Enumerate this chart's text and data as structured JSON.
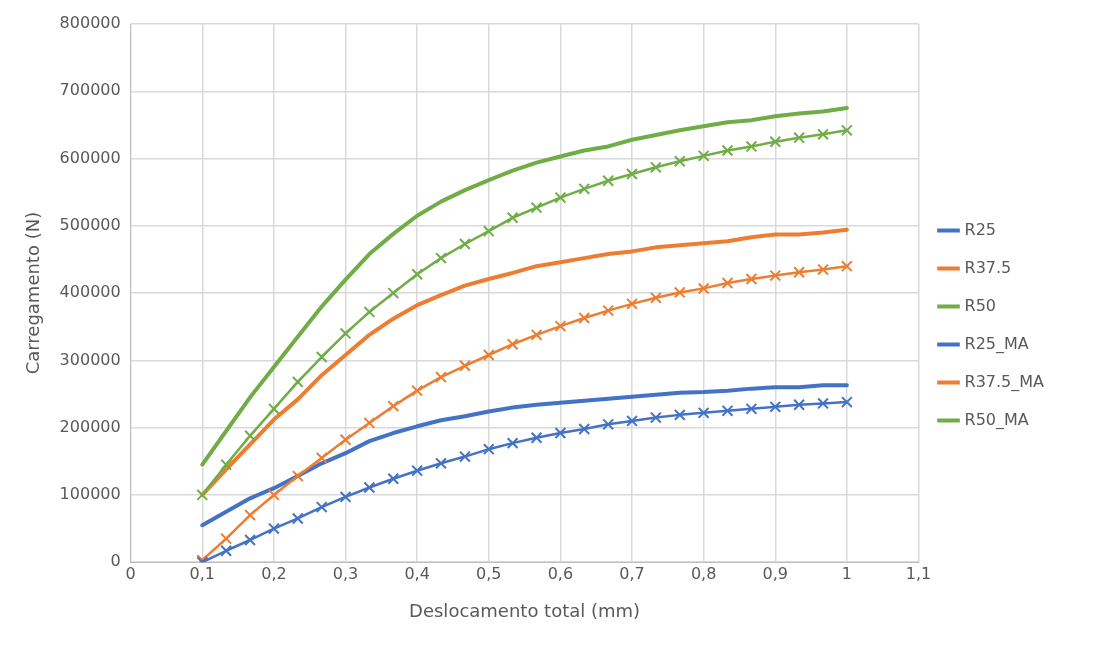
{
  "chart_data": {
    "type": "line",
    "xlabel": "Deslocamento total (mm)",
    "ylabel": "Carregamento (N)",
    "x": [
      0.1,
      0.1333,
      0.1667,
      0.2,
      0.2333,
      0.2667,
      0.3,
      0.3333,
      0.3667,
      0.4,
      0.4333,
      0.4667,
      0.5,
      0.5333,
      0.5667,
      0.6,
      0.6333,
      0.6667,
      0.7,
      0.7333,
      0.7667,
      0.8,
      0.8333,
      0.8667,
      0.9,
      0.9333,
      0.9667,
      1.0
    ],
    "series": [
      {
        "name": "R25",
        "color": "#4472c4",
        "marker": "none",
        "values": [
          55000,
          75000,
          95000,
          110000,
          128000,
          147000,
          162000,
          180000,
          192000,
          202000,
          211000,
          217000,
          224000,
          230000,
          234000,
          237000,
          240000,
          243000,
          246000,
          249000,
          252000,
          253000,
          255000,
          258000,
          260000,
          260000,
          263000,
          263000
        ]
      },
      {
        "name": "R37.5",
        "color": "#ed7d31",
        "marker": "none",
        "values": [
          100000,
          138000,
          175000,
          212000,
          242000,
          278000,
          308000,
          338000,
          362000,
          382000,
          397000,
          411000,
          421000,
          430000,
          440000,
          446000,
          452000,
          458000,
          462000,
          468000,
          471000,
          474000,
          477000,
          483000,
          487000,
          487000,
          490000,
          494000
        ]
      },
      {
        "name": "R50",
        "color": "#70ad47",
        "marker": "none",
        "values": [
          145000,
          195000,
          245000,
          290000,
          335000,
          380000,
          420000,
          458000,
          488000,
          515000,
          536000,
          553000,
          568000,
          582000,
          594000,
          603000,
          612000,
          618000,
          628000,
          635000,
          642000,
          648000,
          654000,
          657000,
          663000,
          667000,
          670000,
          675000
        ]
      },
      {
        "name": "R25_MA",
        "color": "#4472c4",
        "marker": "cross",
        "values": [
          0,
          17000,
          33000,
          50000,
          65000,
          82000,
          97000,
          111000,
          124000,
          136000,
          147000,
          157000,
          168000,
          177000,
          185000,
          192000,
          198000,
          205000,
          210000,
          215000,
          219000,
          222000,
          225000,
          228000,
          231000,
          234000,
          236000,
          238000
        ]
      },
      {
        "name": "R37.5_MA",
        "color": "#ed7d31",
        "marker": "cross",
        "values": [
          3000,
          35000,
          70000,
          100000,
          128000,
          155000,
          182000,
          207000,
          232000,
          255000,
          275000,
          292000,
          308000,
          324000,
          338000,
          351000,
          363000,
          374000,
          384000,
          393000,
          401000,
          407000,
          415000,
          421000,
          426000,
          431000,
          435000,
          440000
        ]
      },
      {
        "name": "R50_MA",
        "color": "#70ad47",
        "marker": "cross",
        "values": [
          100000,
          145000,
          188000,
          228000,
          268000,
          305000,
          340000,
          372000,
          400000,
          428000,
          452000,
          473000,
          492000,
          512000,
          527000,
          542000,
          555000,
          567000,
          577000,
          587000,
          596000,
          604000,
          612000,
          618000,
          625000,
          631000,
          636000,
          642000
        ]
      }
    ],
    "xlim": [
      0,
      1.1
    ],
    "xticks": [
      0,
      {
        "value": 0.1,
        "label": "0,1"
      },
      {
        "value": 0.2,
        "label": "0,2"
      },
      {
        "value": 0.3,
        "label": "0,3"
      },
      {
        "value": 0.4,
        "label": "0,4"
      },
      {
        "value": 0.5,
        "label": "0,5"
      },
      {
        "value": 0.6,
        "label": "0,6"
      },
      {
        "value": 0.7,
        "label": "0,7"
      },
      {
        "value": 0.8,
        "label": "0,8"
      },
      {
        "value": 0.9,
        "label": "0,9"
      },
      1,
      {
        "value": 1.1,
        "label": "1,1"
      }
    ],
    "ylim": [
      0,
      800000
    ],
    "yticks": [
      0,
      100000,
      200000,
      300000,
      400000,
      500000,
      600000,
      700000,
      800000
    ],
    "grid": true,
    "legend": "right",
    "line_style": "solid"
  }
}
